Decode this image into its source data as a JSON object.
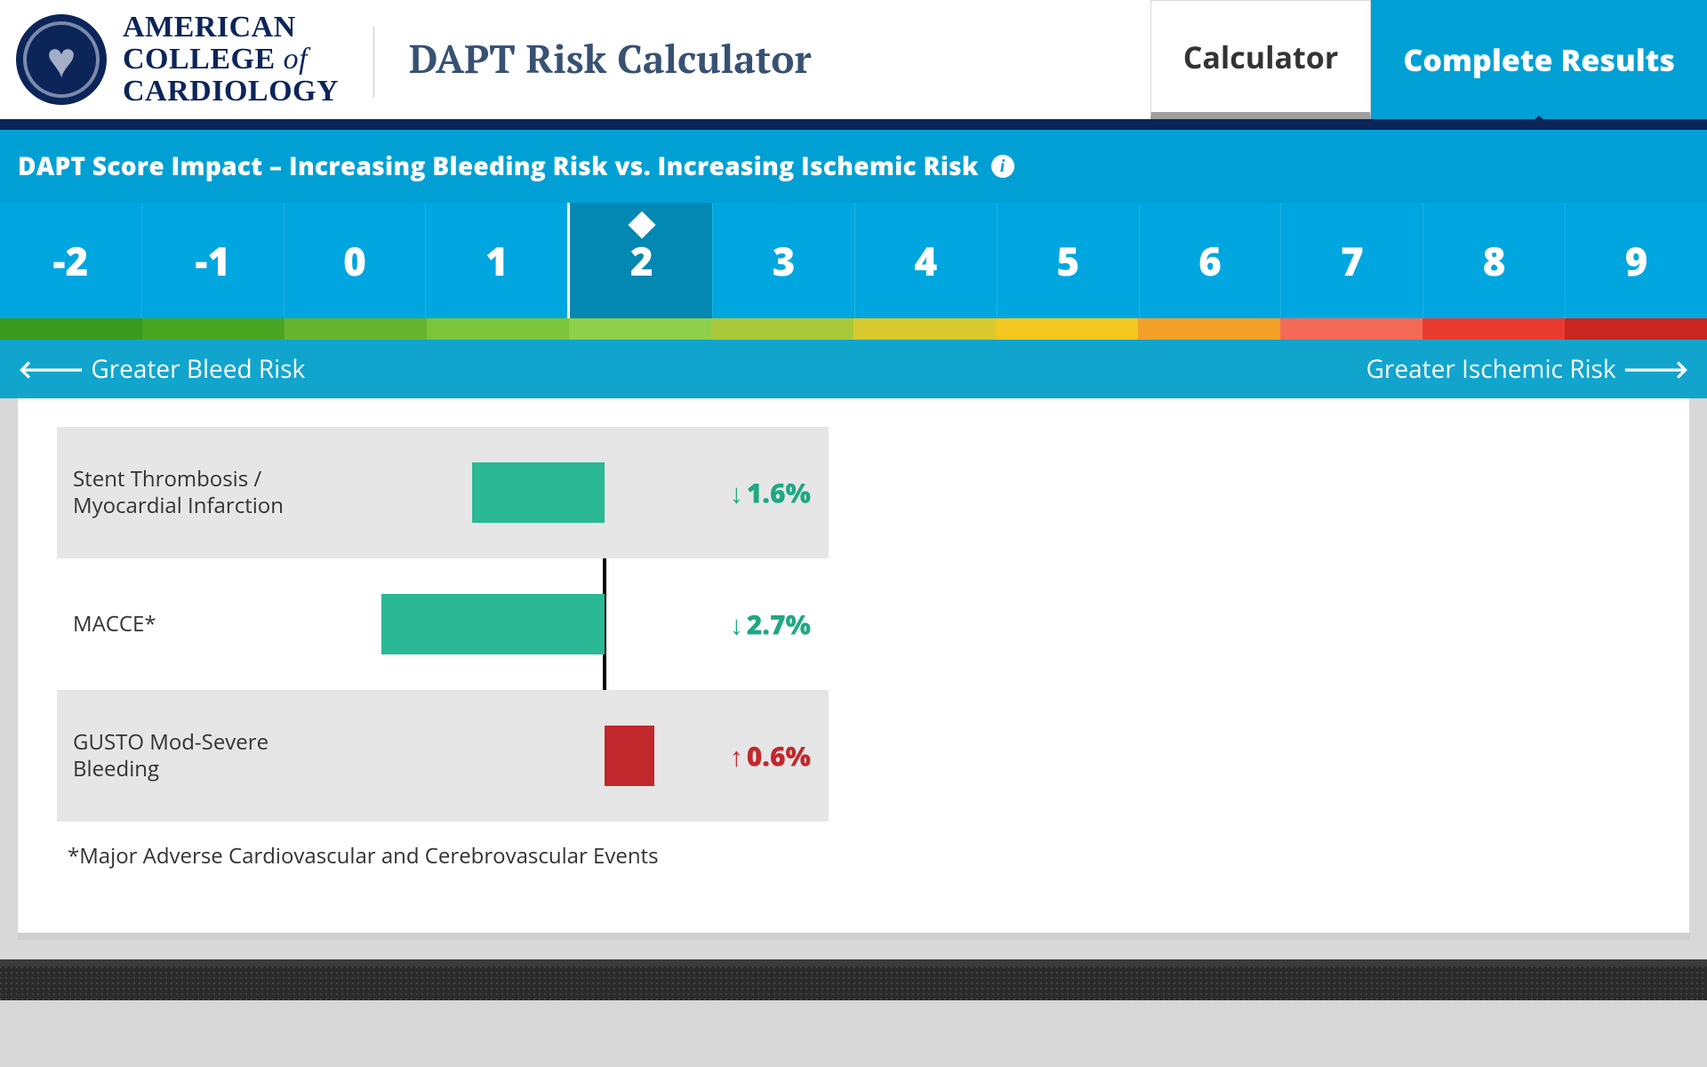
{
  "brand": {
    "line1": "AMERICAN",
    "line2a": "COLLEGE ",
    "line2b": "of",
    "line3": "CARDIOLOGY"
  },
  "appTitle": "DAPT Risk Calculator",
  "tabs": {
    "calculator": "Calculator",
    "results": "Complete Results"
  },
  "panel": {
    "title": "DAPT Score Impact – Increasing Bleeding Risk vs. Increasing Ischemic Risk"
  },
  "scale": {
    "values": [
      "-2",
      "-1",
      "0",
      "1",
      "2",
      "3",
      "4",
      "5",
      "6",
      "7",
      "8",
      "9"
    ],
    "selectedIndex": 4,
    "gradientColors": [
      "#3b9b1f",
      "#4aa522",
      "#67b52e",
      "#7cc53b",
      "#8ed049",
      "#a9c93b",
      "#d7c92e",
      "#f2c81e",
      "#f3a128",
      "#f46a57",
      "#ea3b30",
      "#c9271f"
    ],
    "leftLegend": "Greater Bleed Risk",
    "rightLegend": "Greater Ischemic Risk",
    "cellColor": "#00a6df",
    "selectedColor": "#0288b2"
  },
  "chart": {
    "axisPx": 616,
    "maxAbs": 3.0,
    "pxPerUnit": 93,
    "barPositiveColor": "#c1282d",
    "barNegativeColor": "#2bb894",
    "rows": [
      {
        "label": "Stent Thrombosis /\nMyocardial Infarction",
        "value": -1.6,
        "display": "1.6%",
        "dir": "down",
        "shade": true
      },
      {
        "label": "MACCE*",
        "value": -2.7,
        "display": "2.7%",
        "dir": "down",
        "shade": false
      },
      {
        "label": "GUSTO Mod-Severe\nBleeding",
        "value": 0.6,
        "display": "0.6%",
        "dir": "up",
        "shade": true
      }
    ],
    "footnote": "*Major Adverse Cardiovascular and Cerebrovascular Events"
  },
  "colors": {
    "brandNavy": "#0c2559",
    "accBlue": "#00a0d4"
  }
}
